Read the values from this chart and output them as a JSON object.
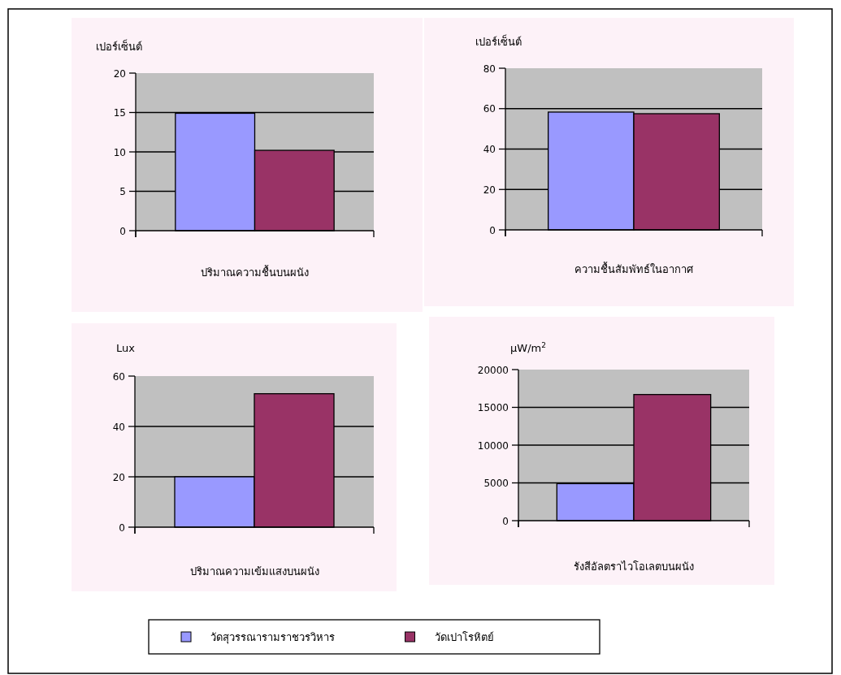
{
  "chart_data": [
    {
      "type": "bar",
      "xlabel": "ปริมาณความชื้นบนผนัง",
      "ylabel": "เปอร์เซ็นต์",
      "categories": [
        null
      ],
      "ylim": [
        0,
        20
      ],
      "yticks": [
        0,
        5,
        10,
        15,
        20
      ],
      "grid": "y",
      "legend": "bottom",
      "series": [
        {
          "name": "วัดสุวรรณารามราชวรวิหาร",
          "color": "#9999ff",
          "values": [
            14.9
          ]
        },
        {
          "name": "วัดเปาโรหิตย์",
          "color": "#993366",
          "values": [
            10.2
          ]
        }
      ]
    },
    {
      "type": "bar",
      "xlabel": "ความชื้นสัมพัทธ์ในอากาศ",
      "ylabel": "เปอร์เซ็นต์",
      "categories": [
        null
      ],
      "ylim": [
        0,
        80
      ],
      "yticks": [
        0,
        20,
        40,
        60,
        80
      ],
      "grid": "y",
      "series": [
        {
          "color": "#9999ff",
          "values": [
            58.3
          ]
        },
        {
          "color": "#993366",
          "values": [
            57.5
          ]
        }
      ]
    },
    {
      "type": "bar",
      "xlabel": "ปริมาณความเข้มแสงบนผนัง",
      "ylabel": "Lux",
      "categories": [
        null
      ],
      "ylim": [
        0,
        60
      ],
      "yticks": [
        0,
        20,
        40,
        60
      ],
      "grid": "y",
      "series": [
        {
          "color": "#9999ff",
          "values": [
            20
          ]
        },
        {
          "color": "#993366",
          "values": [
            53
          ]
        }
      ]
    },
    {
      "type": "bar",
      "xlabel": "รังสีอัลตราไวโอเลตบนผนัง",
      "ylabel": "µW/m$^{2}$",
      "categories": [
        null
      ],
      "ylim": [
        0,
        20000
      ],
      "yticks": [
        0,
        5000,
        10000,
        15000,
        20000
      ],
      "grid": "y",
      "series": [
        {
          "color": "#9999ff",
          "values": [
            4900
          ]
        },
        {
          "color": "#993366",
          "values": [
            16700
          ]
        }
      ]
    }
  ]
}
